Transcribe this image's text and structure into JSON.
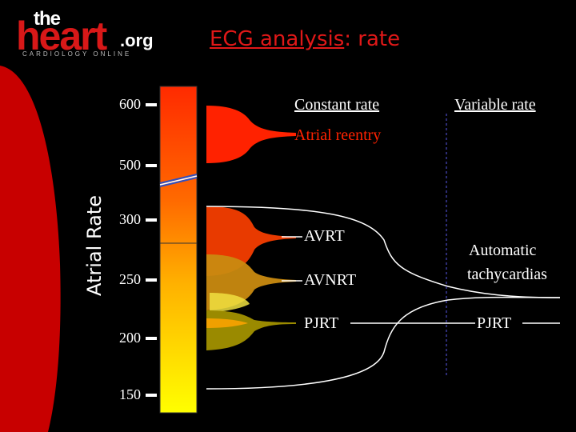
{
  "logo": {
    "the": "the",
    "heart": "heart",
    "org": ".org",
    "tagline": "CARDIOLOGY ONLINE"
  },
  "title": {
    "main": "ECG analysis",
    "suffix": ": rate"
  },
  "axis": {
    "title": "Atrial Rate",
    "ticks": [
      "600",
      "500",
      "300",
      "250",
      "200",
      "150"
    ]
  },
  "headers": {
    "constant": "Constant rate",
    "variable": "Variable rate"
  },
  "labels": {
    "atrial_reentry": "Atrial reentry",
    "avrt": "AVRT",
    "avnrt": "AVNRT",
    "pjrt_left": "PJRT",
    "automatic_line1": "Automatic",
    "automatic_line2": "tachycardias",
    "pjrt_right": "PJRT"
  },
  "colors": {
    "background": "#000000",
    "accent_red": "#d81818",
    "title_red": "#e01818",
    "bar_top": "#ff2a00",
    "bar_bottom": "#ffff00",
    "dashed_line": "#3a3a9a"
  }
}
